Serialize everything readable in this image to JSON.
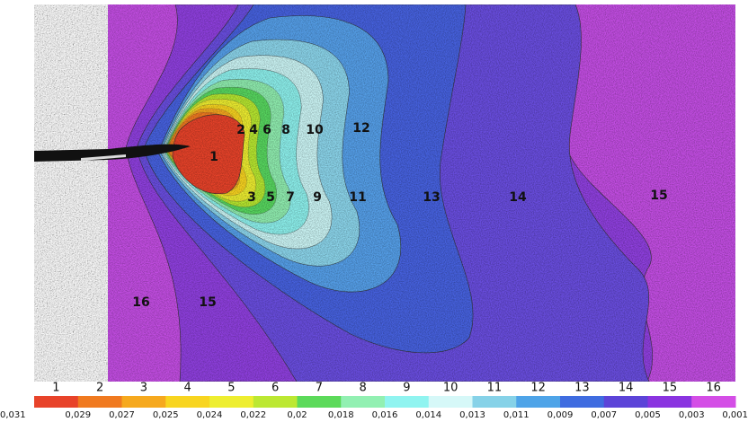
{
  "map": {
    "zone_labels": [
      "1",
      "2",
      "4",
      "6",
      "8",
      "10",
      "12",
      "3",
      "5",
      "7",
      "9",
      "11",
      "13",
      "14",
      "15",
      "16",
      "15"
    ]
  },
  "colorbar": {
    "levels": [
      {
        "label": "1",
        "color": "#e8432a"
      },
      {
        "label": "2",
        "color": "#f07a20"
      },
      {
        "label": "3",
        "color": "#f6a91e"
      },
      {
        "label": "4",
        "color": "#f8d520"
      },
      {
        "label": "5",
        "color": "#eeee30"
      },
      {
        "label": "6",
        "color": "#bce832"
      },
      {
        "label": "7",
        "color": "#5cda5a"
      },
      {
        "label": "8",
        "color": "#92f0b2"
      },
      {
        "label": "9",
        "color": "#90f4f0"
      },
      {
        "label": "10",
        "color": "#d6f8f8"
      },
      {
        "label": "11",
        "color": "#86d2e8"
      },
      {
        "label": "12",
        "color": "#4ea4e8"
      },
      {
        "label": "13",
        "color": "#3f6ce0"
      },
      {
        "label": "14",
        "color": "#5c44d8"
      },
      {
        "label": "15",
        "color": "#8a34e0"
      },
      {
        "label": "16",
        "color": "#d44ee6"
      }
    ],
    "boundaries": [
      "0,031",
      "0,029",
      "0,027",
      "0,025",
      "0,024",
      "0,022",
      "0,02",
      "0,018",
      "0,016",
      "0,014",
      "0,013",
      "0,011",
      "0,009",
      "0,007",
      "0,005",
      "0,003",
      "0,001"
    ]
  }
}
